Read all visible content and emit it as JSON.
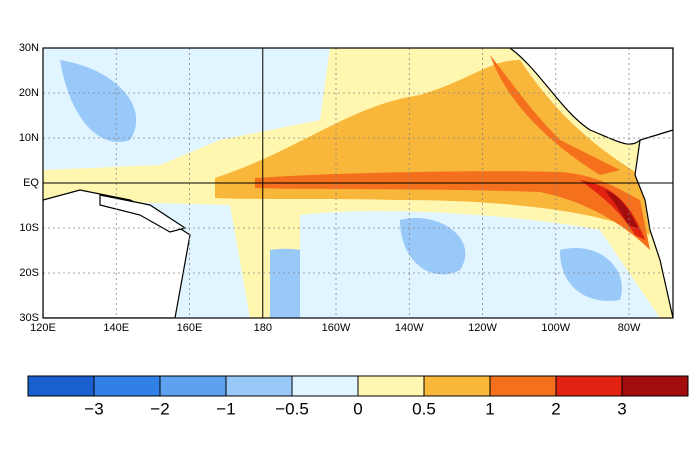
{
  "map": {
    "lonlim": [
      120,
      292
    ],
    "latlim": [
      -30,
      30
    ],
    "lon_ticks": [
      {
        "value": 120,
        "label": "120E"
      },
      {
        "value": 140,
        "label": "140E"
      },
      {
        "value": 160,
        "label": "160E"
      },
      {
        "value": 180,
        "label": "180"
      },
      {
        "value": 200,
        "label": "160W"
      },
      {
        "value": 220,
        "label": "140W"
      },
      {
        "value": 240,
        "label": "120W"
      },
      {
        "value": 260,
        "label": "100W"
      },
      {
        "value": 280,
        "label": "80W"
      }
    ],
    "lat_ticks": [
      {
        "value": 30,
        "label": "30N"
      },
      {
        "value": 20,
        "label": "20N"
      },
      {
        "value": 10,
        "label": "10N"
      },
      {
        "value": 0,
        "label": "EQ"
      },
      {
        "value": -10,
        "label": "10S"
      },
      {
        "value": -20,
        "label": "20S"
      },
      {
        "value": -30,
        "label": "30S"
      }
    ]
  },
  "colorbar": {
    "colors": [
      "#1a5fd0",
      "#3080e8",
      "#5ea2ef",
      "#98c9f8",
      "#e0f5ff",
      "#fff6b0",
      "#f8b63a",
      "#f5701c",
      "#e22312",
      "#a40d0d"
    ],
    "ticks": [
      {
        "value": -3,
        "label": "−3"
      },
      {
        "value": -2,
        "label": "−2"
      },
      {
        "value": -1,
        "label": "−1"
      },
      {
        "value": -0.5,
        "label": "−0.5"
      },
      0,
      0.5,
      1,
      2,
      3
    ]
  }
}
